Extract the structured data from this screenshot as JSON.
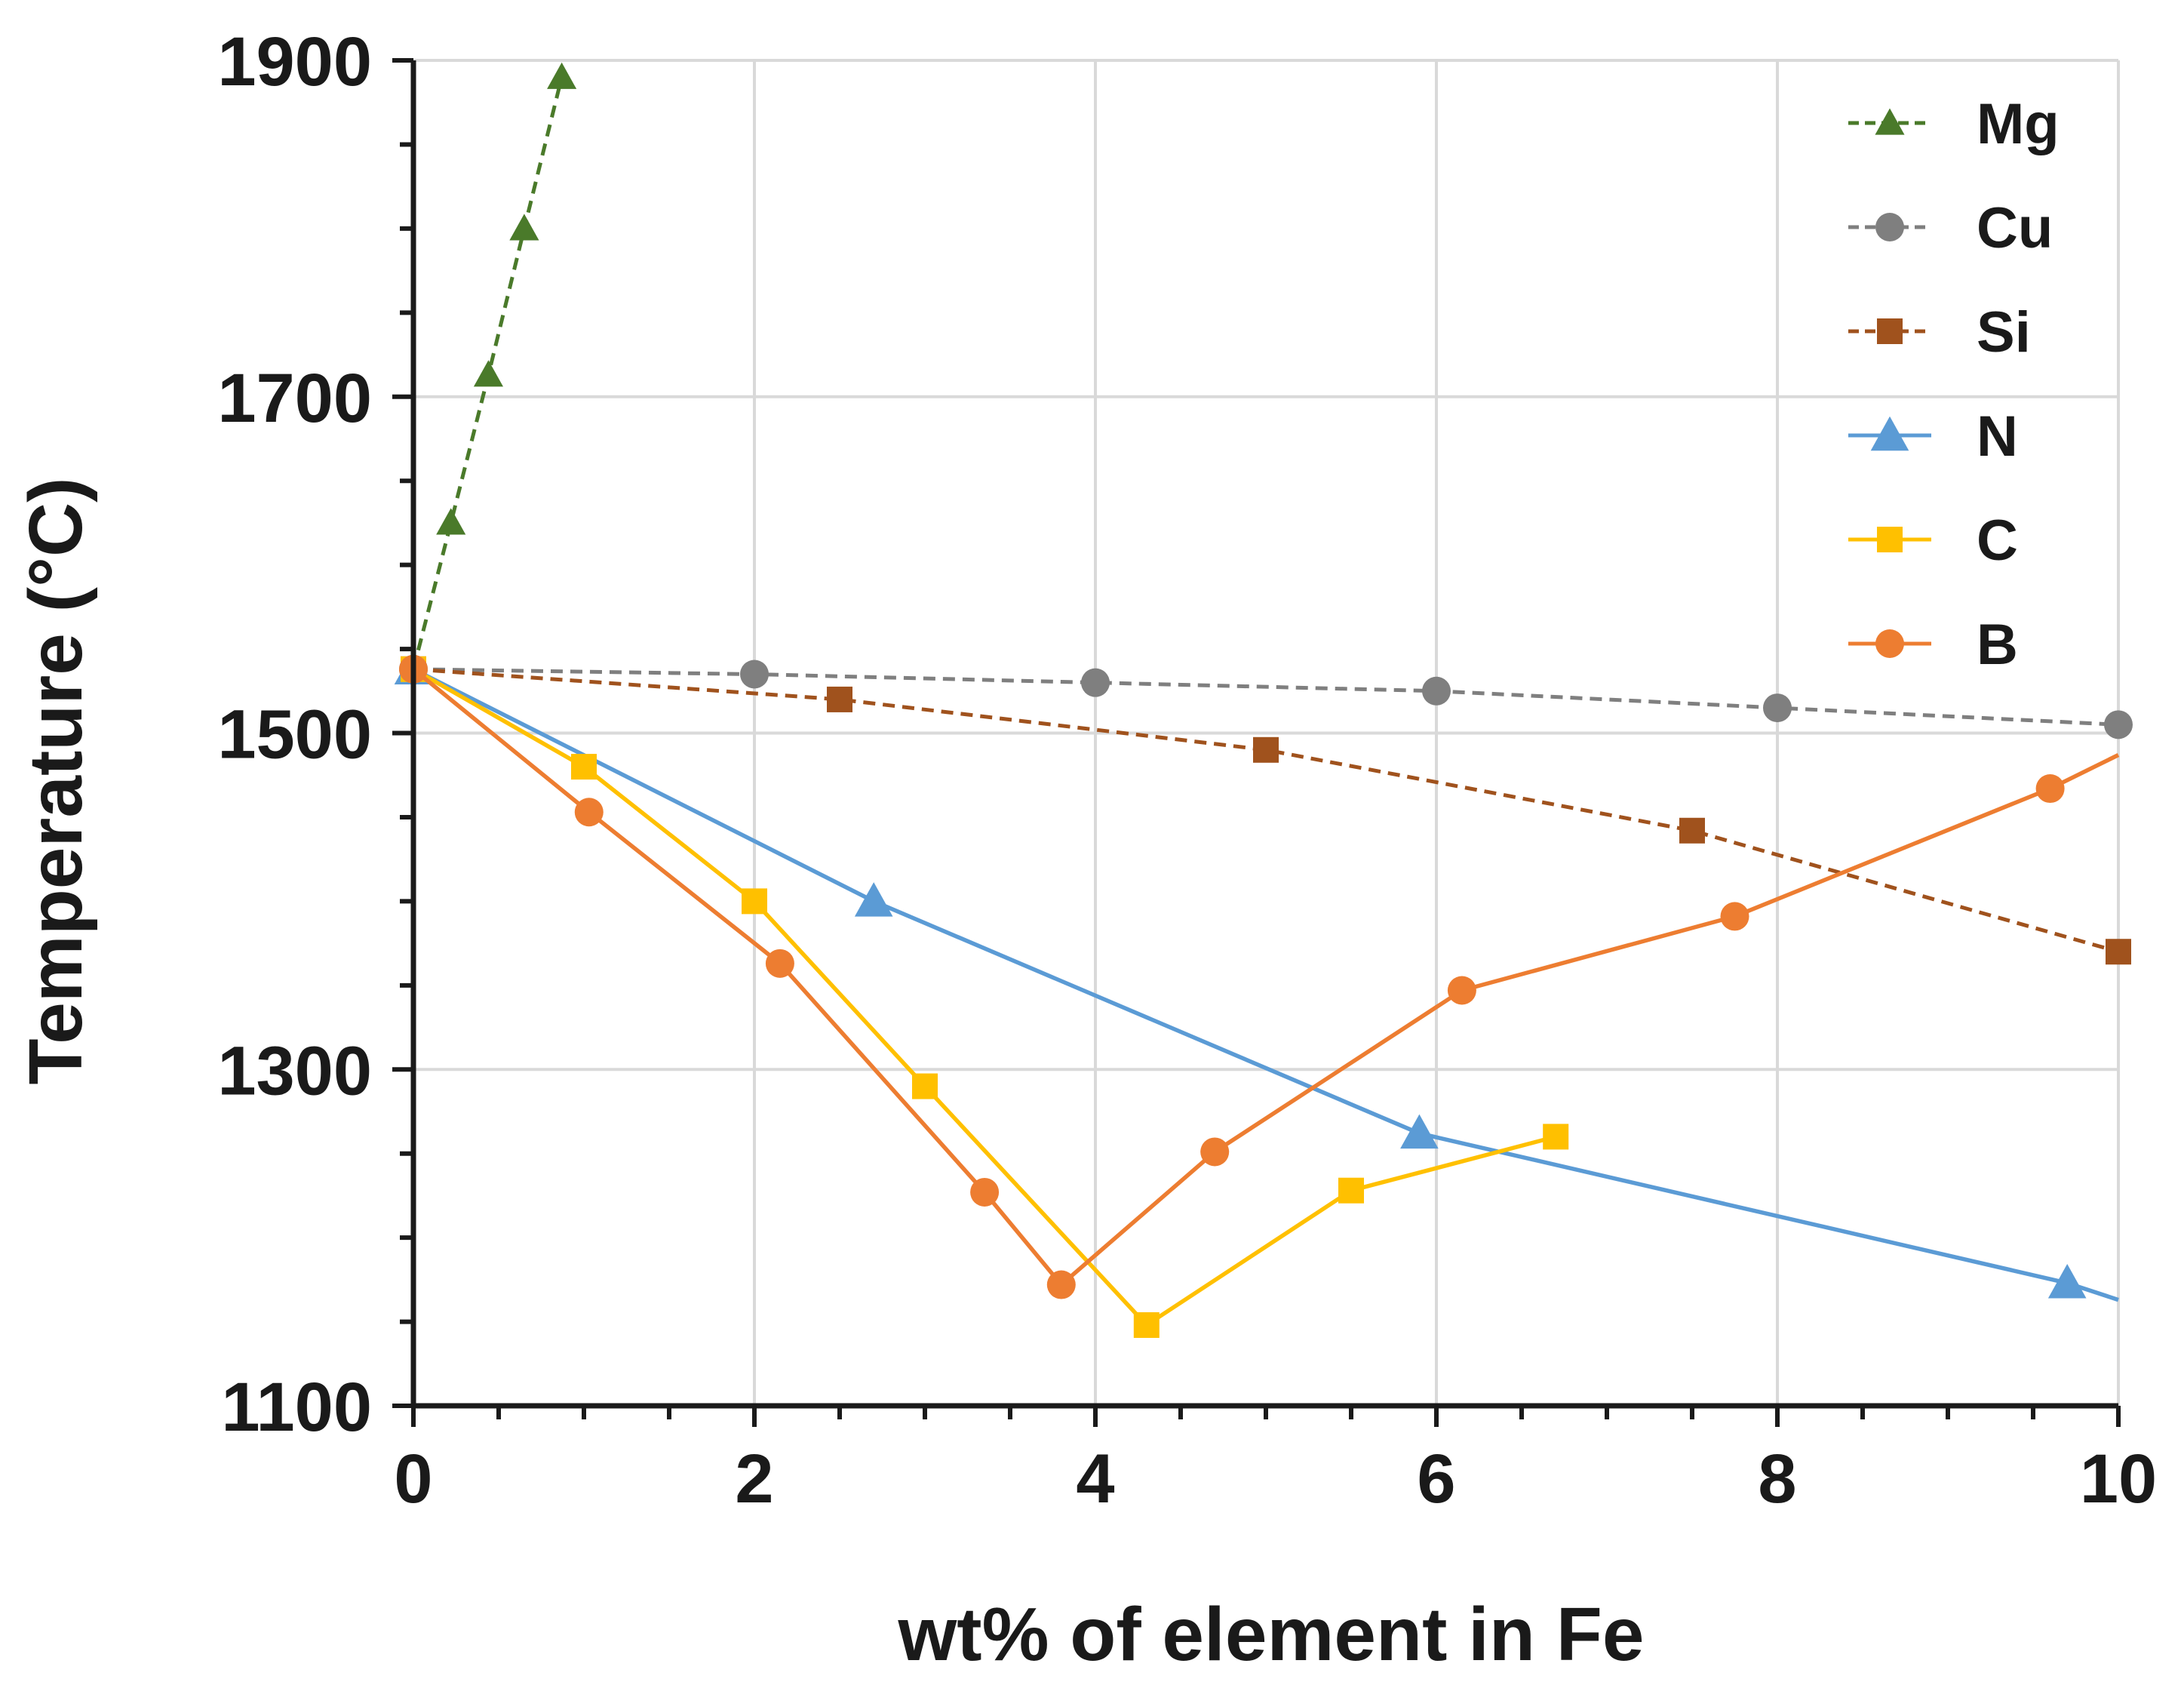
{
  "chart_data": {
    "type": "line",
    "title": "",
    "xlabel": "wt% of element in Fe",
    "ylabel": "Temperature  (°C)",
    "xlim": [
      0,
      10
    ],
    "ylim": [
      1100,
      1900
    ],
    "xticks": [
      0,
      2,
      4,
      6,
      8,
      10
    ],
    "xtick_labels": [
      "0",
      "2",
      "4",
      "6",
      "8",
      "10"
    ],
    "yticks": [
      1100,
      1300,
      1500,
      1700,
      1900
    ],
    "ytick_labels": [
      "1100",
      "1300",
      "1500",
      "1700",
      "1900"
    ],
    "grid": true,
    "legend_position": "top-right",
    "series": [
      {
        "name": "Mg",
        "color": "#4a7a2a",
        "dash": true,
        "marker": "triangle",
        "x": [
          0,
          0.22,
          0.44,
          0.65,
          0.87
        ],
        "y": [
          1538,
          1625,
          1713,
          1800,
          1890
        ]
      },
      {
        "name": "Cu",
        "color": "#7f7f7f",
        "dash": true,
        "marker": "circle",
        "x": [
          0,
          2,
          4,
          6,
          8,
          10
        ],
        "y": [
          1538,
          1535,
          1530,
          1525,
          1515,
          1505
        ]
      },
      {
        "name": "Si",
        "color": "#a0521d",
        "dash": true,
        "marker": "square",
        "x": [
          0,
          2.5,
          5,
          7.5,
          10
        ],
        "y": [
          1538,
          1520,
          1490,
          1442,
          1370
        ]
      },
      {
        "name": "N",
        "color": "#5b9bd5",
        "dash": false,
        "marker": "triangle",
        "x": [
          0,
          2.7,
          5.9,
          9.7
        ],
        "y": [
          1538,
          1400,
          1262,
          1173
        ]
      },
      {
        "name": "C",
        "color": "#ffc000",
        "dash": false,
        "marker": "square",
        "x": [
          0,
          1,
          2,
          3,
          4.3,
          5.5,
          6.7
        ],
        "y": [
          1538,
          1480,
          1400,
          1290,
          1148,
          1228,
          1260
        ]
      },
      {
        "name": "B",
        "color": "#ed7d31",
        "dash": false,
        "marker": "circle",
        "x": [
          0,
          1.03,
          2.15,
          3.35,
          3.8,
          4.7,
          6.15,
          7.75,
          9.6
        ],
        "y": [
          1538,
          1453,
          1363,
          1227,
          1172,
          1251,
          1347,
          1391,
          1467
        ]
      }
    ],
    "line_tails": {
      "N": {
        "x": 10,
        "y": 1163
      },
      "B": {
        "x": 10,
        "y": 1487
      }
    }
  }
}
